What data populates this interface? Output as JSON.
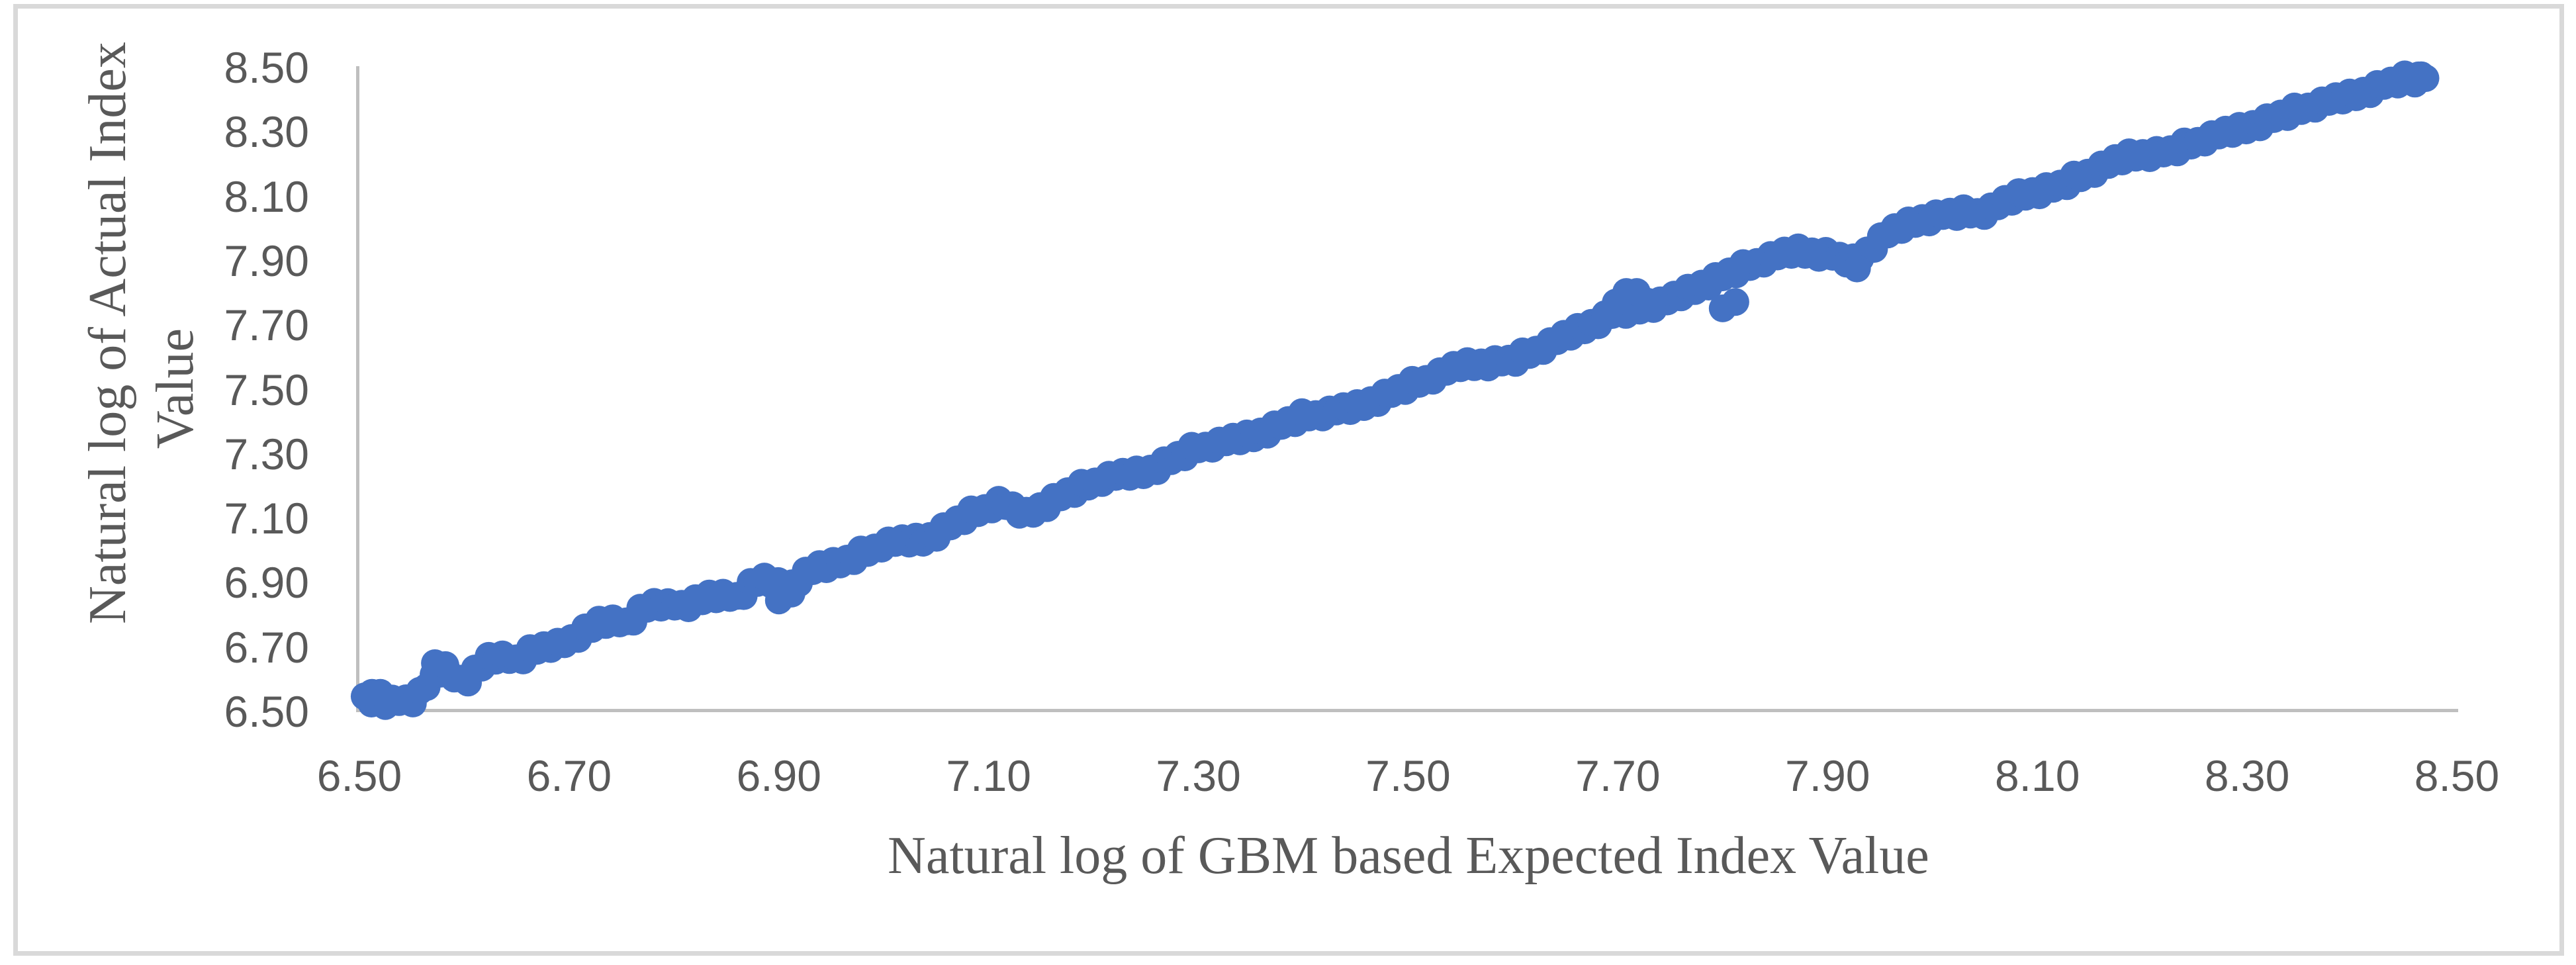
{
  "chart_data": {
    "type": "scatter",
    "title": "",
    "xlabel": "Natural log of GBM based Expected Index Value",
    "ylabel": "Natural log of Actual Index Value",
    "ylabel_lines": [
      "Natural log of Actual Index",
      "Value"
    ],
    "xlim": [
      6.5,
      8.5
    ],
    "ylim": [
      6.5,
      8.5
    ],
    "x_tick_labels": [
      "6.50",
      "6.70",
      "6.90",
      "7.10",
      "7.30",
      "7.50",
      "7.70",
      "7.90",
      "8.10",
      "8.30",
      "8.50"
    ],
    "y_tick_labels_top_to_bottom": [
      "8.50",
      "8.30",
      "8.10",
      "7.90",
      "7.70",
      "7.50",
      "7.30",
      "7.10",
      "6.90",
      "6.70",
      "6.50"
    ],
    "grid": false,
    "legend": false,
    "relationship": "points lie tightly along the identity line y = x from (6.52,6.52) to (8.47,8.47)",
    "n_points_est": 300,
    "x_data_range": [
      6.505,
      8.47
    ],
    "marker": {
      "shape": "circle",
      "color": "#4472C4",
      "radius_px": 21
    },
    "band_anchors_x_offset": [
      [
        6.505,
        0.03
      ],
      [
        6.53,
        0.0
      ],
      [
        6.555,
        -0.018
      ],
      [
        6.575,
        0.06
      ],
      [
        6.6,
        -0.015
      ],
      [
        6.625,
        0.05
      ],
      [
        6.65,
        0.008
      ],
      [
        6.675,
        0.03
      ],
      [
        6.7,
        0.012
      ],
      [
        6.73,
        0.055
      ],
      [
        6.755,
        0.018
      ],
      [
        6.78,
        0.06
      ],
      [
        6.81,
        0.012
      ],
      [
        6.835,
        0.03
      ],
      [
        6.86,
        -0.008
      ],
      [
        6.885,
        0.035
      ],
      [
        6.91,
        -0.03
      ],
      [
        6.935,
        0.018
      ],
      [
        6.96,
        0.0
      ],
      [
        7.0,
        0.022
      ],
      [
        7.04,
        -0.006
      ],
      [
        7.08,
        0.028
      ],
      [
        7.11,
        0.04
      ],
      [
        7.135,
        -0.025
      ],
      [
        7.17,
        0.0
      ],
      [
        7.21,
        0.015
      ],
      [
        7.25,
        -0.006
      ],
      [
        7.3,
        0.02
      ],
      [
        7.35,
        0.004
      ],
      [
        7.4,
        0.016
      ],
      [
        7.45,
        -0.006
      ],
      [
        7.5,
        0.01
      ],
      [
        7.55,
        0.024
      ],
      [
        7.6,
        -0.01
      ],
      [
        7.65,
        0.014
      ],
      [
        7.695,
        0.04
      ],
      [
        7.72,
        0.03
      ],
      [
        7.75,
        0.028
      ],
      [
        7.78,
        0.045
      ],
      [
        7.81,
        0.055
      ],
      [
        7.84,
        0.065
      ],
      [
        7.87,
        0.06
      ],
      [
        7.9,
        0.02
      ],
      [
        7.925,
        -0.03
      ],
      [
        7.955,
        0.025
      ],
      [
        7.985,
        0.04
      ],
      [
        8.015,
        0.03
      ],
      [
        8.05,
        0.002
      ],
      [
        8.085,
        0.02
      ],
      [
        8.12,
        0.01
      ],
      [
        8.155,
        0.028
      ],
      [
        8.19,
        0.038
      ],
      [
        8.225,
        0.012
      ],
      [
        8.26,
        0.02
      ],
      [
        8.295,
        0.014
      ],
      [
        8.33,
        0.018
      ],
      [
        8.365,
        0.02
      ],
      [
        8.4,
        0.012
      ],
      [
        8.435,
        0.016
      ],
      [
        8.47,
        0.01
      ]
    ],
    "scatter_jitter_cycle": [
      0.012,
      -0.009,
      0.004,
      -0.014,
      0.01,
      -0.003,
      0.007,
      -0.011,
      0.015,
      -0.006,
      0.001,
      -0.013,
      0.008,
      -0.002,
      0.011,
      -0.008
    ],
    "outlier_points_x_offset": [
      [
        7.708,
        0.095
      ],
      [
        7.718,
        0.085
      ],
      [
        7.698,
        0.072
      ],
      [
        7.728,
        0.045
      ],
      [
        7.8,
        -0.048
      ],
      [
        7.812,
        -0.04
      ],
      [
        6.9,
        -0.055
      ],
      [
        6.912,
        -0.046
      ],
      [
        6.572,
        0.078
      ],
      [
        6.582,
        0.062
      ],
      [
        8.452,
        0.022
      ],
      [
        8.46,
        -0.01
      ],
      [
        8.466,
        0.01
      ],
      [
        7.928,
        -0.052
      ],
      [
        6.512,
        0.046
      ],
      [
        6.52,
        0.038
      ]
    ]
  },
  "style": {
    "frame_color": "#D9D9D9",
    "axis_line_color": "#BFBFBF",
    "tick_label_color": "#595959",
    "axis_title_color": "#595959",
    "background": "#FFFFFF"
  }
}
